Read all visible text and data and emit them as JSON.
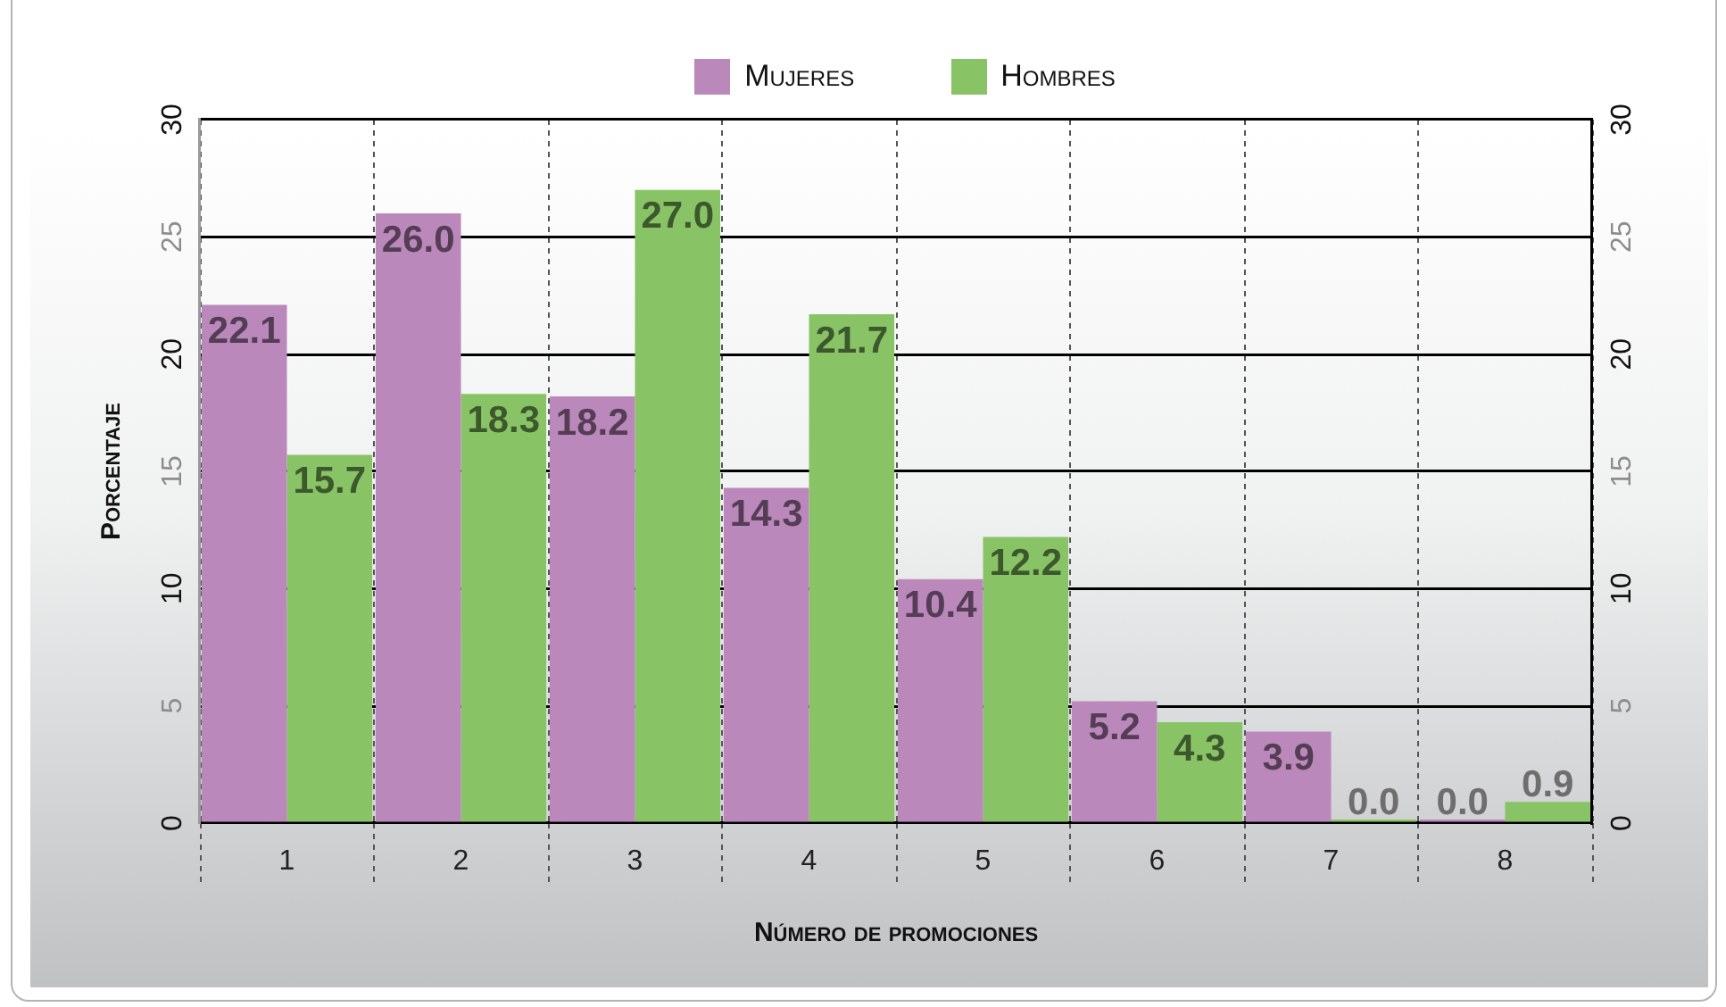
{
  "chart_data": {
    "type": "bar",
    "xlabel": "Número de promociones",
    "ylabel": "Porcentaje",
    "categories": [
      "1",
      "2",
      "3",
      "4",
      "5",
      "6",
      "7",
      "8"
    ],
    "series": [
      {
        "name": "Mujeres",
        "color": "#bb88bc",
        "values": [
          22.1,
          26.0,
          18.2,
          14.3,
          10.4,
          5.2,
          3.9,
          0.0
        ],
        "value_labels": [
          "22.1",
          "26.0",
          "18.2",
          "14.3",
          "10.4",
          "5.2",
          "3.9",
          "0.0"
        ]
      },
      {
        "name": "Hombres",
        "color": "#88c465",
        "values": [
          15.7,
          18.3,
          27.0,
          21.7,
          12.2,
          4.3,
          0.0,
          0.9
        ],
        "value_labels": [
          "15.7",
          "18.3",
          "27.0",
          "21.7",
          "12.2",
          "4.3",
          "0.0",
          "0.9"
        ]
      }
    ],
    "ylim": [
      0,
      30
    ],
    "yticks": [
      0,
      5,
      10,
      15,
      20,
      25,
      30
    ],
    "y2lim": [
      0,
      30
    ],
    "y2ticks": [
      0,
      5,
      10,
      15,
      20,
      25,
      30
    ],
    "grid": true,
    "legend": "top"
  }
}
